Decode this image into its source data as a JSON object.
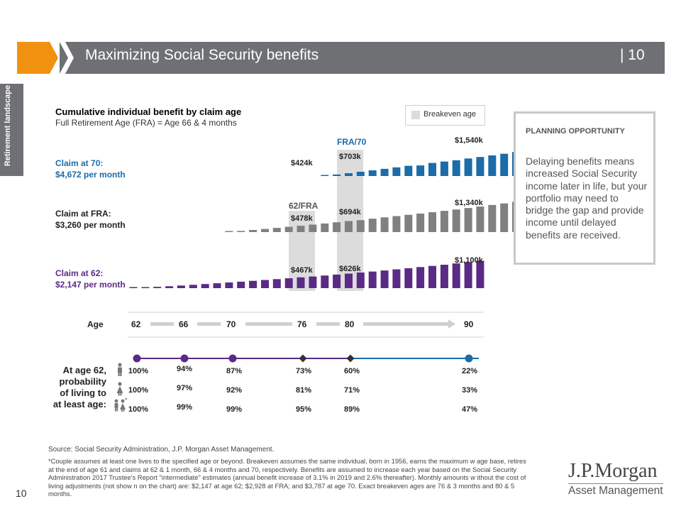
{
  "header": {
    "title": "Maximizing Social Security benefits",
    "page_number": "| 10",
    "accent_color": "#f0920f",
    "bar_color": "#6e7074"
  },
  "side_tab": {
    "label": "Retirement landscape"
  },
  "chart_data": {
    "type": "bar",
    "title": "Cumulative individual benefit by claim age",
    "subtitle": "Full Retirement  Age (FRA) = Age 66 & 4 months",
    "legend": {
      "label": "Breakeven age",
      "color": "#dcdcdc",
      "placement": "top-right"
    },
    "x_axis": {
      "label": "Age",
      "ticks": [
        "62",
        "66",
        "70",
        "76",
        "80",
        "90"
      ]
    },
    "series": [
      {
        "name": "Claim at 70:",
        "sub": "$4,672 per month",
        "color": "#1b6ca8",
        "start_age": 70,
        "values_k": [
          8,
          61,
          115,
          171,
          229,
          288,
          349,
          412,
          424,
          524,
          582,
          634,
          703,
          764,
          828,
          895,
          965,
          1038,
          1114,
          1193,
          1275,
          1360,
          1448,
          1540
        ]
      },
      {
        "name": "Claim at FRA:",
        "sub": "$3,260 per month",
        "color": "#808080",
        "start_age": 66,
        "values_k": [
          14,
          47,
          86,
          126,
          168,
          211,
          255,
          300,
          346,
          393,
          441,
          478,
          540,
          591,
          642,
          694,
          745,
          798,
          852,
          908,
          966,
          1026,
          1088,
          1152,
          1219,
          1288,
          1340
        ]
      },
      {
        "name": "Claim at 62:",
        "sub": "$2,147 per month",
        "color": "#5b2a86",
        "start_age": 62,
        "values_k": [
          2,
          24,
          50,
          78,
          106,
          135,
          165,
          196,
          228,
          260,
          293,
          327,
          362,
          397,
          433,
          467,
          508,
          546,
          585,
          626,
          668,
          711,
          755,
          800,
          846,
          893,
          942,
          992,
          1044,
          1100
        ]
      }
    ],
    "data_labels": {
      "fra70": "FRA/70",
      "s70_a": "$424k",
      "s70_b": "$703k",
      "s70_end": "$1,540k",
      "fra62": "62/FRA",
      "sfra_a": "$478k",
      "sfra_b": "$694k",
      "sfra_end": "$1,340k",
      "s62_a": "$467k",
      "s62_b": "$626k",
      "s62_end": "$1,100k"
    },
    "breakeven_ages": [
      "76",
      "80"
    ]
  },
  "probability": {
    "label_lines": [
      "At age 62,",
      "probability",
      "of living to",
      "at least age:"
    ],
    "rows": [
      {
        "icon": "male-person-icon",
        "values": [
          "100%",
          "94%",
          "87%",
          "73%",
          "60%",
          "22%"
        ]
      },
      {
        "icon": "female-person-icon",
        "values": [
          "100%",
          "97%",
          "92%",
          "81%",
          "71%",
          "33%"
        ]
      },
      {
        "icon": "couple-icon",
        "marker": "*",
        "values": [
          "100%",
          "99%",
          "99%",
          "95%",
          "89%",
          "47%"
        ]
      }
    ],
    "line_color_start": "#5b2a86",
    "line_color_end": "#1b6ca8"
  },
  "planning": {
    "heading": "PLANNING OPPORTUNITY",
    "body": "Delaying benefits means increased Social Security income later in life, but your portfolio may need to bridge the gap and provide income until delayed benefits are received."
  },
  "footer": {
    "source": "Source: Social Security Administration, J.P. Morgan Asset Management.",
    "footnote": "*Couple assumes at least one lives to the specified age or beyond. Breakeven assumes the same individual, born in 1956, earns the maximum w age base, retires at the end of age 61 and claims at 62 & 1 month, 66 & 4 months and 70, respectively. Benefits are assumed to increase each year based on the Social Security Administration 2017 Trustee's Report \"intermediate\" estimates (annual benefit increase of 3.1% in 2019 and 2.6% thereafter). Monthly amounts w ithout the cost of living adjustments (not show n on the chart) are: $2,147 at age 62; $2,928 at FRA; and $3,787 at age 70. Exact breakeven ages are 76 & 3 months and 80 & 5 months.",
    "page": "10",
    "logo_line1": "J.P.Morgan",
    "logo_line2": "Asset Management"
  }
}
